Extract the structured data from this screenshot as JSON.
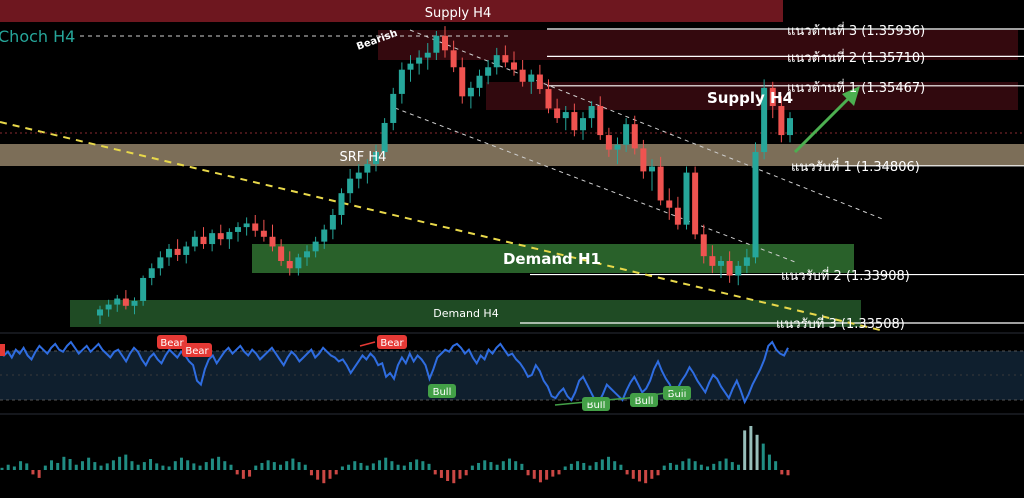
{
  "chart_data": {
    "type": "candlestick",
    "main_panel": {
      "zones": [
        {
          "label": "Supply H4",
          "color": "#7a1a22"
        },
        {
          "label": "",
          "color": "#3d0b10"
        },
        {
          "label": "Supply H4",
          "color": "#3a0b10"
        },
        {
          "label": "SRF H4",
          "color": "#9b8a6e"
        },
        {
          "label": "Demand H1",
          "color": "#2e6b2f"
        },
        {
          "label": "Demand H4",
          "color": "#24582a"
        }
      ],
      "levels": [
        {
          "label": "แนวต้านที่ 3 (1.35936)",
          "value": 1.35936
        },
        {
          "label": "แนวต้านที่ 2 (1.35710)",
          "value": 1.3571
        },
        {
          "label": "แนวต้านที่ 1 (1.35467)",
          "value": 1.35467
        },
        {
          "label": "แนวรับที่ 1 (1.34806)",
          "value": 1.34806
        },
        {
          "label": "แนวรับที่ 2 (1.33908)",
          "value": 1.33908
        },
        {
          "label": "แนวรับที่ 3 (1.33508)",
          "value": 1.33508
        }
      ],
      "annotations": [
        "Choch H4",
        "Bearish"
      ],
      "candles": [
        [
          1.3357,
          1.3365,
          1.335,
          1.3362
        ],
        [
          1.3362,
          1.337,
          1.3356,
          1.3366
        ],
        [
          1.3366,
          1.3374,
          1.336,
          1.3371
        ],
        [
          1.3371,
          1.3378,
          1.3362,
          1.3365
        ],
        [
          1.3365,
          1.3372,
          1.3358,
          1.3369
        ],
        [
          1.3369,
          1.339,
          1.3365,
          1.3388
        ],
        [
          1.3388,
          1.34,
          1.3382,
          1.3396
        ],
        [
          1.3396,
          1.341,
          1.339,
          1.3405
        ],
        [
          1.3405,
          1.3416,
          1.3398,
          1.3412
        ],
        [
          1.3412,
          1.342,
          1.3402,
          1.3407
        ],
        [
          1.3407,
          1.3418,
          1.34,
          1.3414
        ],
        [
          1.3414,
          1.3427,
          1.341,
          1.3422
        ],
        [
          1.3422,
          1.343,
          1.3412,
          1.3416
        ],
        [
          1.3416,
          1.3428,
          1.341,
          1.3425
        ],
        [
          1.3425,
          1.3432,
          1.3415,
          1.342
        ],
        [
          1.342,
          1.3429,
          1.3412,
          1.3426
        ],
        [
          1.3426,
          1.3434,
          1.3418,
          1.343
        ],
        [
          1.343,
          1.3438,
          1.3423,
          1.3433
        ],
        [
          1.3433,
          1.344,
          1.3422,
          1.3427
        ],
        [
          1.3427,
          1.3436,
          1.3418,
          1.3422
        ],
        [
          1.3422,
          1.3432,
          1.341,
          1.3414
        ],
        [
          1.3414,
          1.342,
          1.3398,
          1.3402
        ],
        [
          1.3402,
          1.341,
          1.339,
          1.3396
        ],
        [
          1.3396,
          1.3408,
          1.339,
          1.3405
        ],
        [
          1.3405,
          1.3415,
          1.3398,
          1.341
        ],
        [
          1.341,
          1.3422,
          1.3405,
          1.3418
        ],
        [
          1.3418,
          1.3432,
          1.3412,
          1.3428
        ],
        [
          1.3428,
          1.3445,
          1.342,
          1.344
        ],
        [
          1.344,
          1.3462,
          1.3432,
          1.3458
        ],
        [
          1.3458,
          1.3478,
          1.345,
          1.347
        ],
        [
          1.347,
          1.3482,
          1.3462,
          1.3475
        ],
        [
          1.3475,
          1.3486,
          1.3466,
          1.3482
        ],
        [
          1.3482,
          1.3498,
          1.3476,
          1.3492
        ],
        [
          1.3492,
          1.352,
          1.3488,
          1.3516
        ],
        [
          1.3516,
          1.3545,
          1.351,
          1.354
        ],
        [
          1.354,
          1.3566,
          1.3532,
          1.356
        ],
        [
          1.356,
          1.3572,
          1.355,
          1.3565
        ],
        [
          1.3565,
          1.3576,
          1.3556,
          1.357
        ],
        [
          1.357,
          1.3582,
          1.356,
          1.3574
        ],
        [
          1.3574,
          1.3592,
          1.3568,
          1.3588
        ],
        [
          1.3588,
          1.3596,
          1.357,
          1.3576
        ],
        [
          1.3576,
          1.3584,
          1.3558,
          1.3562
        ],
        [
          1.3562,
          1.357,
          1.3532,
          1.3538
        ],
        [
          1.3538,
          1.355,
          1.3528,
          1.3545
        ],
        [
          1.3545,
          1.356,
          1.3538,
          1.3555
        ],
        [
          1.3555,
          1.3568,
          1.3548,
          1.3562
        ],
        [
          1.3562,
          1.3578,
          1.3556,
          1.3572
        ],
        [
          1.3572,
          1.358,
          1.3562,
          1.3566
        ],
        [
          1.3566,
          1.3575,
          1.3555,
          1.356
        ],
        [
          1.356,
          1.3568,
          1.3546,
          1.355
        ],
        [
          1.355,
          1.356,
          1.354,
          1.3556
        ],
        [
          1.3556,
          1.3564,
          1.354,
          1.3544
        ],
        [
          1.3544,
          1.3552,
          1.3524,
          1.3528
        ],
        [
          1.3528,
          1.3536,
          1.3516,
          1.352
        ],
        [
          1.352,
          1.353,
          1.351,
          1.3525
        ],
        [
          1.3525,
          1.3532,
          1.3505,
          1.351
        ],
        [
          1.351,
          1.3525,
          1.3502,
          1.352
        ],
        [
          1.352,
          1.3534,
          1.3512,
          1.353
        ],
        [
          1.353,
          1.3538,
          1.3502,
          1.3506
        ],
        [
          1.3506,
          1.3512,
          1.3488,
          1.3494
        ],
        [
          1.3494,
          1.3504,
          1.3482,
          1.3498
        ],
        [
          1.3498,
          1.352,
          1.3492,
          1.3515
        ],
        [
          1.3515,
          1.3522,
          1.349,
          1.3495
        ],
        [
          1.3495,
          1.3502,
          1.347,
          1.3476
        ],
        [
          1.3476,
          1.3486,
          1.346,
          1.348
        ],
        [
          1.348,
          1.3488,
          1.3448,
          1.3452
        ],
        [
          1.3452,
          1.3462,
          1.3436,
          1.3446
        ],
        [
          1.3446,
          1.3455,
          1.3428,
          1.3432
        ],
        [
          1.3432,
          1.348,
          1.3428,
          1.3475
        ],
        [
          1.3475,
          1.348,
          1.342,
          1.3424
        ],
        [
          1.3424,
          1.3432,
          1.34,
          1.3406
        ],
        [
          1.3406,
          1.3415,
          1.3392,
          1.3398
        ],
        [
          1.3398,
          1.3406,
          1.3388,
          1.3402
        ],
        [
          1.3402,
          1.341,
          1.3384,
          1.339
        ],
        [
          1.339,
          1.3402,
          1.3382,
          1.3398
        ],
        [
          1.3398,
          1.3412,
          1.3392,
          1.3405
        ],
        [
          1.3405,
          1.35,
          1.34,
          1.3492
        ],
        [
          1.3492,
          1.3552,
          1.3486,
          1.3545
        ],
        [
          1.3545,
          1.355,
          1.352,
          1.353
        ],
        [
          1.353,
          1.3538,
          1.35,
          1.3506
        ],
        [
          1.3506,
          1.3525,
          1.35,
          1.352
        ]
      ]
    },
    "rsi_panel": {
      "values": [
        58,
        57,
        59,
        56,
        60,
        58,
        61,
        57,
        55,
        59,
        62,
        60,
        58,
        61,
        63,
        60,
        59,
        62,
        64,
        61,
        58,
        60,
        62,
        59,
        61,
        63,
        60,
        58,
        56,
        59,
        60,
        57,
        54,
        58,
        61,
        59,
        55,
        52,
        56,
        58,
        55,
        53,
        57,
        60,
        58,
        56,
        59,
        57,
        54,
        52,
        44,
        42,
        50,
        55,
        57,
        53,
        56,
        59,
        61,
        58,
        60,
        62,
        59,
        57,
        60,
        58,
        55,
        57,
        59,
        61,
        58,
        55,
        52,
        56,
        59,
        57,
        54,
        56,
        58,
        60,
        56,
        58,
        61,
        59,
        57,
        56,
        54,
        55,
        52,
        48,
        51,
        54,
        57,
        55,
        58,
        56,
        52,
        53,
        46,
        48,
        45,
        52,
        56,
        53,
        58,
        54,
        57,
        55,
        52,
        45,
        50,
        56,
        58,
        60,
        59,
        62,
        63,
        61,
        58,
        60,
        56,
        53,
        57,
        55,
        60,
        58,
        61,
        63,
        60,
        57,
        58,
        55,
        53,
        50,
        46,
        47,
        52,
        49,
        44,
        41,
        36,
        35,
        38,
        40,
        36,
        34,
        38,
        44,
        46,
        42,
        38,
        34,
        33,
        37,
        42,
        40,
        38,
        36,
        34,
        39,
        43,
        46,
        42,
        38,
        40,
        44,
        50,
        54,
        49,
        45,
        42,
        37,
        40,
        44,
        47,
        51,
        48,
        44,
        41,
        38,
        43,
        47,
        45,
        41,
        38,
        35,
        40,
        44,
        39,
        33,
        37,
        42,
        46,
        50,
        55,
        62,
        64,
        60,
        58,
        57,
        61
      ],
      "signals": [
        "Bear",
        "Bear",
        "Bear",
        "Bull",
        "Bull",
        "Bull",
        "Bull"
      ]
    },
    "volume_histogram": {
      "values": [
        0.05,
        0.12,
        0.08,
        0.2,
        0.15,
        -0.1,
        -0.18,
        0.1,
        0.22,
        0.16,
        0.3,
        0.25,
        0.12,
        0.2,
        0.28,
        0.18,
        0.1,
        0.15,
        0.22,
        0.3,
        0.35,
        0.2,
        0.12,
        0.18,
        0.25,
        0.15,
        0.1,
        0.08,
        0.2,
        0.28,
        0.22,
        0.15,
        0.1,
        0.18,
        0.26,
        0.3,
        0.2,
        0.12,
        -0.1,
        -0.2,
        -0.15,
        0.1,
        0.16,
        0.22,
        0.18,
        0.12,
        0.2,
        0.26,
        0.18,
        0.12,
        -0.12,
        -0.22,
        -0.3,
        -0.2,
        -0.1,
        0.08,
        0.12,
        0.2,
        0.16,
        0.1,
        0.15,
        0.22,
        0.28,
        0.2,
        0.12,
        0.1,
        0.18,
        0.24,
        0.2,
        0.14,
        -0.1,
        -0.18,
        -0.25,
        -0.3,
        -0.2,
        -0.12,
        0.1,
        0.16,
        0.22,
        0.18,
        0.12,
        0.2,
        0.26,
        0.2,
        0.14,
        -0.12,
        -0.2,
        -0.28,
        -0.22,
        -0.15,
        -0.1,
        0.08,
        0.14,
        0.2,
        0.16,
        0.1,
        0.18,
        0.24,
        0.3,
        0.2,
        0.12,
        -0.1,
        -0.2,
        -0.26,
        -0.3,
        -0.2,
        -0.12,
        0.1,
        0.16,
        0.12,
        0.2,
        0.26,
        0.2,
        0.12,
        0.08,
        0.14,
        0.2,
        0.26,
        0.18,
        0.12,
        0.9,
        1.0,
        0.8,
        0.6,
        0.35,
        0.2,
        -0.1,
        -0.12
      ]
    }
  }
}
